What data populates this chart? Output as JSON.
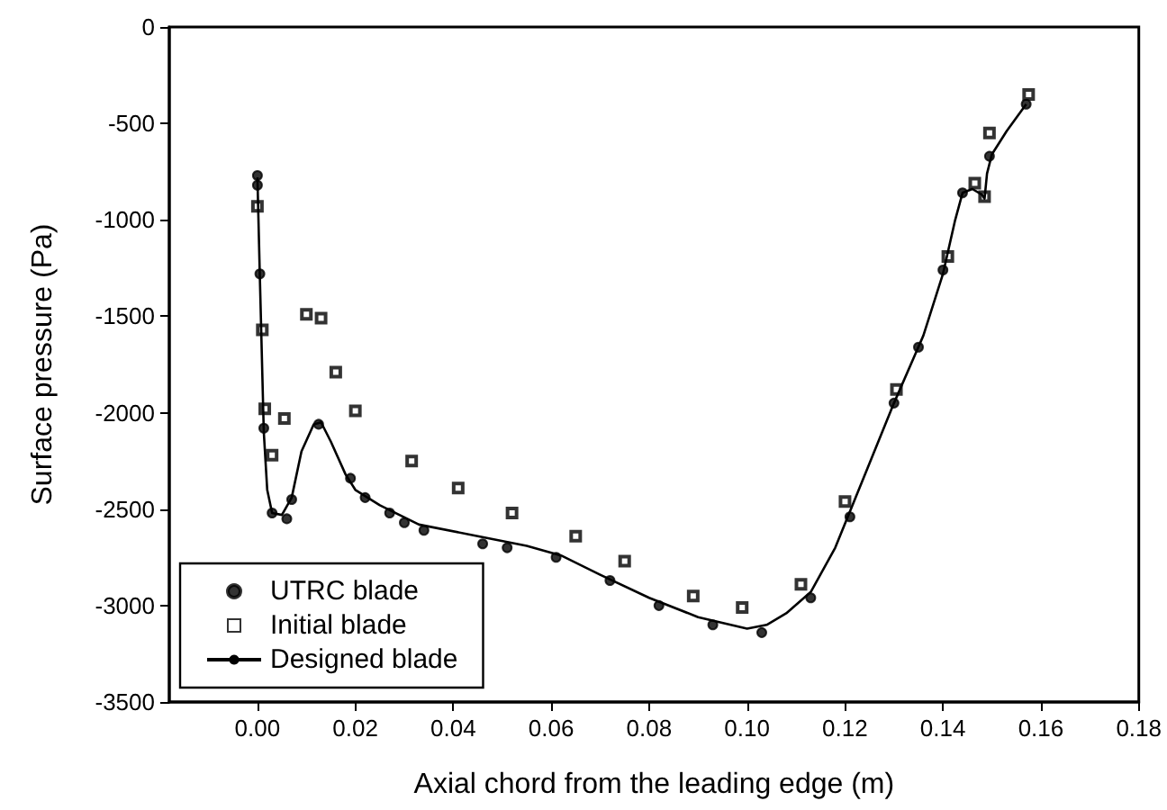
{
  "chart_data": {
    "type": "scatter",
    "xlabel": "Axial chord from the leading edge (m)",
    "ylabel": "Surface pressure (Pa)",
    "xlim": [
      -0.018,
      0.18
    ],
    "ylim": [
      -3500,
      0
    ],
    "xticks": [
      {
        "value": 0,
        "label": "0.00"
      },
      {
        "value": 0.02,
        "label": "0.02"
      },
      {
        "value": 0.04,
        "label": "0.04"
      },
      {
        "value": 0.06,
        "label": "0.06"
      },
      {
        "value": 0.08,
        "label": "0.08"
      },
      {
        "value": 0.1,
        "label": "0.10"
      },
      {
        "value": 0.12,
        "label": "0.12"
      },
      {
        "value": 0.14,
        "label": "0.14"
      },
      {
        "value": 0.16,
        "label": "0.16"
      },
      {
        "value": 0.18,
        "label": "0.18"
      }
    ],
    "yticks": [
      -3500,
      -3000,
      -2500,
      -2000,
      -1500,
      -1000,
      -500,
      0
    ],
    "grid": false,
    "legend": "bottom left",
    "series": [
      {
        "name": "UTRC blade",
        "marker": "circle",
        "color": "#000000",
        "x": [
          0,
          0,
          0.0005,
          0.0013,
          0.003,
          0.006,
          0.007,
          0.0125,
          0.019,
          0.022,
          0.027,
          0.03,
          0.034,
          0.046,
          0.051,
          0.061,
          0.072,
          0.082,
          0.093,
          0.103,
          0.113,
          0.121,
          0.13,
          0.135,
          0.14,
          0.144,
          0.1495,
          0.157
        ],
        "values": [
          -770,
          -820,
          -1280,
          -2080,
          -2520,
          -2550,
          -2450,
          -2060,
          -2340,
          -2440,
          -2520,
          -2570,
          -2610,
          -2680,
          -2700,
          -2750,
          -2870,
          -3000,
          -3100,
          -3140,
          -2960,
          -2540,
          -1950,
          -1660,
          -1260,
          -860,
          -670,
          -400
        ]
      },
      {
        "name": "Initial blade",
        "marker": "square",
        "color": "#000000",
        "x": [
          0,
          0.001,
          0.0015,
          0.003,
          0.0055,
          0.01,
          0.013,
          0.016,
          0.02,
          0.0315,
          0.041,
          0.052,
          0.065,
          0.075,
          0.089,
          0.099,
          0.111,
          0.12,
          0.1305,
          0.141,
          0.1465,
          0.1485,
          0.1495,
          0.1575
        ],
        "values": [
          -930,
          -1570,
          -1980,
          -2220,
          -2030,
          -1490,
          -1510,
          -1790,
          -1990,
          -2250,
          -2390,
          -2520,
          -2640,
          -2770,
          -2950,
          -3010,
          -2890,
          -2460,
          -1880,
          -1190,
          -810,
          -880,
          -550,
          -350
        ]
      },
      {
        "name": "Designed blade",
        "type": "line",
        "marker": "none",
        "line_style": "solid",
        "color": "#000000",
        "x": [
          0,
          0.0005,
          0.0013,
          0.002,
          0.003,
          0.005,
          0.007,
          0.009,
          0.0115,
          0.013,
          0.015,
          0.018,
          0.02,
          0.025,
          0.033,
          0.045,
          0.055,
          0.062,
          0.07,
          0.08,
          0.09,
          0.1,
          0.104,
          0.108,
          0.113,
          0.118,
          0.122,
          0.13,
          0.136,
          0.14,
          0.1425,
          0.144,
          0.146,
          0.148,
          0.1485,
          0.149,
          0.15,
          0.153,
          0.157
        ],
        "values": [
          -780,
          -1300,
          -2100,
          -2400,
          -2520,
          -2530,
          -2440,
          -2200,
          -2060,
          -2050,
          -2150,
          -2320,
          -2400,
          -2480,
          -2580,
          -2640,
          -2690,
          -2740,
          -2840,
          -2960,
          -3060,
          -3120,
          -3100,
          -3040,
          -2930,
          -2700,
          -2450,
          -1950,
          -1600,
          -1280,
          -1000,
          -860,
          -840,
          -870,
          -890,
          -760,
          -660,
          -540,
          -400
        ]
      }
    ]
  }
}
